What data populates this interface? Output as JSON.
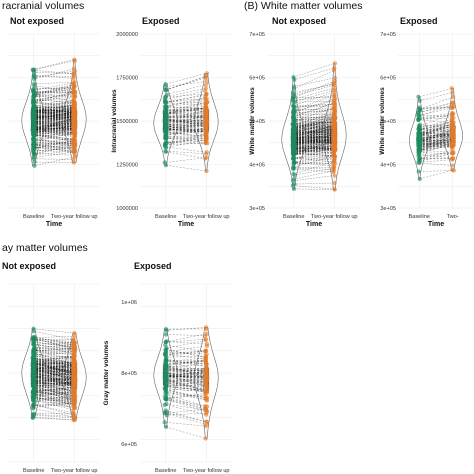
{
  "section_titles": {
    "a": "racranial volumes",
    "b": "(B) White matter volumes",
    "c": "ay matter volumes"
  },
  "colors": {
    "baseline": "#1e8a5e",
    "followup": "#e07a2a",
    "lines": "#111111",
    "grid": "#e8e8e8",
    "violin": "#666666"
  },
  "chart_data": [
    {
      "id": "icv-not-exposed",
      "type": "violin-paired",
      "title": "Not exposed",
      "xlabel": "Time",
      "ylabel": "",
      "categories": [
        "Baseline",
        "Two-year follow up"
      ],
      "yticks": [],
      "ylim": [
        1000000,
        2000000
      ],
      "density": "high",
      "series": [
        {
          "values": [
            1160000,
            1300000,
            1420000,
            1500000,
            1580000,
            1700000,
            1860000
          ]
        },
        {
          "values": [
            1170000,
            1310000,
            1430000,
            1510000,
            1590000,
            1710000,
            1880000
          ]
        }
      ]
    },
    {
      "id": "icv-exposed",
      "type": "violin-paired",
      "title": "Exposed",
      "xlabel": "Time",
      "ylabel": "Intracranial volumes",
      "categories": [
        "Baseline",
        "Two-year follow up"
      ],
      "yticks": [
        {
          "value": 1000000,
          "label": "1000000"
        },
        {
          "value": 1250000,
          "label": "1250000"
        },
        {
          "value": 1500000,
          "label": "1500000"
        },
        {
          "value": 1750000,
          "label": "1750000"
        },
        {
          "value": 2000000,
          "label": "2000000"
        }
      ],
      "ylim": [
        1000000,
        2000000
      ],
      "density": "medium",
      "series": [
        {
          "values": [
            1110000,
            1300000,
            1420000,
            1500000,
            1580000,
            1680000,
            1840000
          ]
        },
        {
          "values": [
            1100000,
            1310000,
            1430000,
            1510000,
            1590000,
            1720000,
            1990000
          ]
        }
      ]
    },
    {
      "id": "wm-not-exposed",
      "type": "violin-paired",
      "title": "Not exposed",
      "xlabel": "Time",
      "ylabel": "White matter volumes",
      "categories": [
        "Baseline",
        "Two-year follow up"
      ],
      "yticks": [
        {
          "value": 300000,
          "label": "3e+05"
        },
        {
          "value": 400000,
          "label": "4e+05"
        },
        {
          "value": 500000,
          "label": "5e+05"
        },
        {
          "value": 600000,
          "label": "6e+05"
        },
        {
          "value": 700000,
          "label": "7e+05"
        }
      ],
      "ylim": [
        300000,
        700000
      ],
      "density": "high",
      "series": [
        {
          "values": [
            310000,
            380000,
            430000,
            460000,
            490000,
            560000,
            650000
          ]
        },
        {
          "values": [
            305000,
            390000,
            440000,
            470000,
            500000,
            580000,
            690000
          ]
        }
      ]
    },
    {
      "id": "wm-exposed",
      "type": "violin-paired",
      "title": "Exposed",
      "xlabel": "Time",
      "ylabel": "White matter volumes",
      "categories": [
        "Baseline",
        "Two-"
      ],
      "yticks": [
        {
          "value": 300000,
          "label": "3e+05"
        },
        {
          "value": 400000,
          "label": "4e+05"
        },
        {
          "value": 500000,
          "label": "5e+05"
        },
        {
          "value": 600000,
          "label": "6e+05"
        },
        {
          "value": 700000,
          "label": "7e+05"
        }
      ],
      "ylim": [
        300000,
        700000
      ],
      "density": "medium",
      "series": [
        {
          "values": [
            330000,
            390000,
            430000,
            460000,
            490000,
            550000,
            620000
          ]
        },
        {
          "values": [
            340000,
            400000,
            440000,
            470000,
            500000,
            560000,
            630000
          ]
        }
      ]
    },
    {
      "id": "gm-not-exposed",
      "type": "violin-paired",
      "title": "Not exposed",
      "xlabel": "Time",
      "ylabel": "",
      "categories": [
        "Baseline",
        "Two-year follow up"
      ],
      "yticks": [],
      "ylim": [
        550000,
        1050000
      ],
      "density": "high",
      "series": [
        {
          "values": [
            620000,
            700000,
            760000,
            800000,
            840000,
            900000,
            980000
          ]
        },
        {
          "values": [
            610000,
            690000,
            750000,
            790000,
            830000,
            890000,
            980000
          ]
        }
      ]
    },
    {
      "id": "gm-exposed",
      "type": "violin-paired",
      "title": "Exposed",
      "xlabel": "Time",
      "ylabel": "Gray matter volumes",
      "categories": [
        "Baseline",
        "Two-year follow up"
      ],
      "yticks": [
        {
          "value": 600000,
          "label": "6e+05"
        },
        {
          "value": 800000,
          "label": "8e+05"
        },
        {
          "value": 1000000,
          "label": "1e+06"
        }
      ],
      "ylim": [
        550000,
        1050000
      ],
      "density": "medium",
      "series": [
        {
          "values": [
            620000,
            700000,
            760000,
            800000,
            840000,
            890000,
            960000
          ]
        },
        {
          "values": [
            600000,
            690000,
            750000,
            790000,
            830000,
            900000,
            990000
          ]
        }
      ]
    }
  ]
}
